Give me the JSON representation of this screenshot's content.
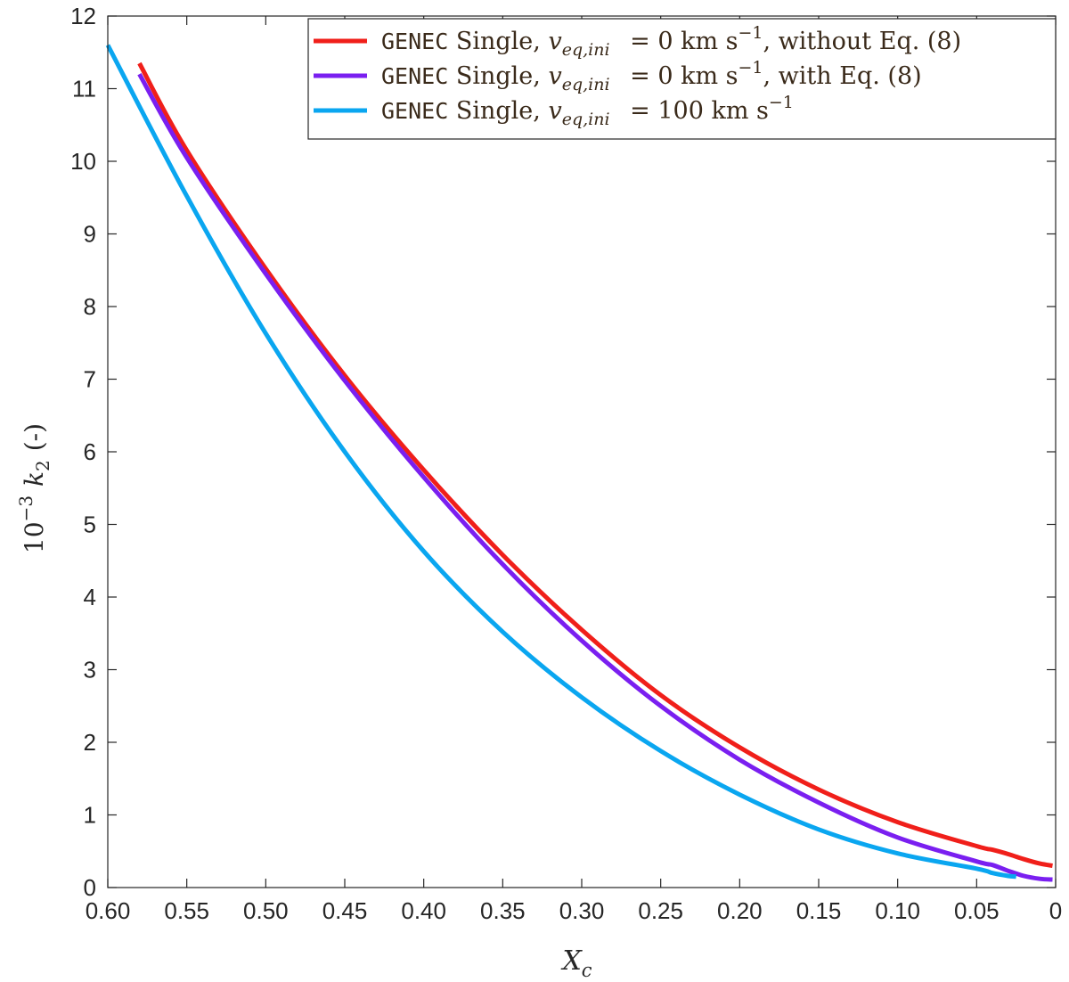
{
  "chart_data": {
    "type": "line",
    "xlabel": "X",
    "xlabel_sub": "c",
    "ylabel": "10−3 k2 (-)",
    "ylabel_prefix": "10",
    "ylabel_exp": "−3",
    "ylabel_var": "k",
    "ylabel_sub": "2",
    "ylabel_suffix": "(-)",
    "xlim": [
      0.6,
      0
    ],
    "x_reversed": true,
    "ylim": [
      0,
      12
    ],
    "xticks": [
      0.6,
      0.55,
      0.5,
      0.45,
      0.4,
      0.35,
      0.3,
      0.25,
      0.2,
      0.15,
      0.1,
      0.05,
      0
    ],
    "xtick_labels": [
      "0.60",
      "0.55",
      "0.50",
      "0.45",
      "0.40",
      "0.35",
      "0.30",
      "0.25",
      "0.20",
      "0.15",
      "0.10",
      "0.05",
      "0"
    ],
    "yticks": [
      0,
      1,
      2,
      3,
      4,
      5,
      6,
      7,
      8,
      9,
      10,
      11,
      12
    ],
    "ytick_labels": [
      "0",
      "1",
      "2",
      "3",
      "4",
      "5",
      "6",
      "7",
      "8",
      "9",
      "10",
      "11",
      "12"
    ],
    "grid": false,
    "legend_position": "top-right",
    "series": [
      {
        "name": "GENEC Single, veq,ini = 0 km s−1, without Eq. (8)",
        "legend_parts": {
          "code": "GENEC",
          "text1": "Single,",
          "var": "v",
          "var_sub": "eq,ini",
          "text2": "= 0 km s",
          "exp": "−1",
          "text3": ", without Eq. (8)"
        },
        "color": "#f01f1a",
        "x": [
          0.58,
          0.55,
          0.5,
          0.45,
          0.4,
          0.35,
          0.3,
          0.25,
          0.2,
          0.15,
          0.1,
          0.05,
          0.04,
          0.03,
          0.02,
          0.01,
          0.002
        ],
        "y": [
          11.35,
          10.15,
          8.52,
          7.05,
          5.75,
          4.58,
          3.55,
          2.65,
          1.93,
          1.35,
          0.9,
          0.57,
          0.52,
          0.46,
          0.39,
          0.33,
          0.3
        ]
      },
      {
        "name": "GENEC Single, veq,ini = 0 km s−1, with Eq. (8)",
        "legend_parts": {
          "code": "GENEC",
          "text1": "Single,",
          "var": "v",
          "var_sub": "eq,ini",
          "text2": "= 0 km s",
          "exp": "−1",
          "text3": ", with Eq. (8)"
        },
        "color": "#7a1ff0",
        "x": [
          0.58,
          0.55,
          0.5,
          0.45,
          0.4,
          0.35,
          0.3,
          0.25,
          0.2,
          0.15,
          0.1,
          0.05,
          0.04,
          0.03,
          0.02,
          0.01,
          0.002
        ],
        "y": [
          11.2,
          10.05,
          8.45,
          6.98,
          5.65,
          4.45,
          3.4,
          2.5,
          1.76,
          1.17,
          0.69,
          0.36,
          0.31,
          0.23,
          0.16,
          0.12,
          0.11
        ]
      },
      {
        "name": "GENEC Single, veq,ini = 100 km s−1",
        "legend_parts": {
          "code": "GENEC",
          "text1": "Single,",
          "var": "v",
          "var_sub": "eq,ini",
          "text2": "= 100 km s",
          "exp": "−1",
          "text3": ""
        },
        "color": "#0aa6f0",
        "x": [
          0.6,
          0.55,
          0.5,
          0.45,
          0.4,
          0.35,
          0.3,
          0.25,
          0.2,
          0.15,
          0.1,
          0.05,
          0.04,
          0.03,
          0.025
        ],
        "y": [
          11.6,
          9.52,
          7.63,
          6.0,
          4.63,
          3.52,
          2.62,
          1.88,
          1.28,
          0.8,
          0.47,
          0.26,
          0.2,
          0.16,
          0.15
        ]
      }
    ]
  }
}
